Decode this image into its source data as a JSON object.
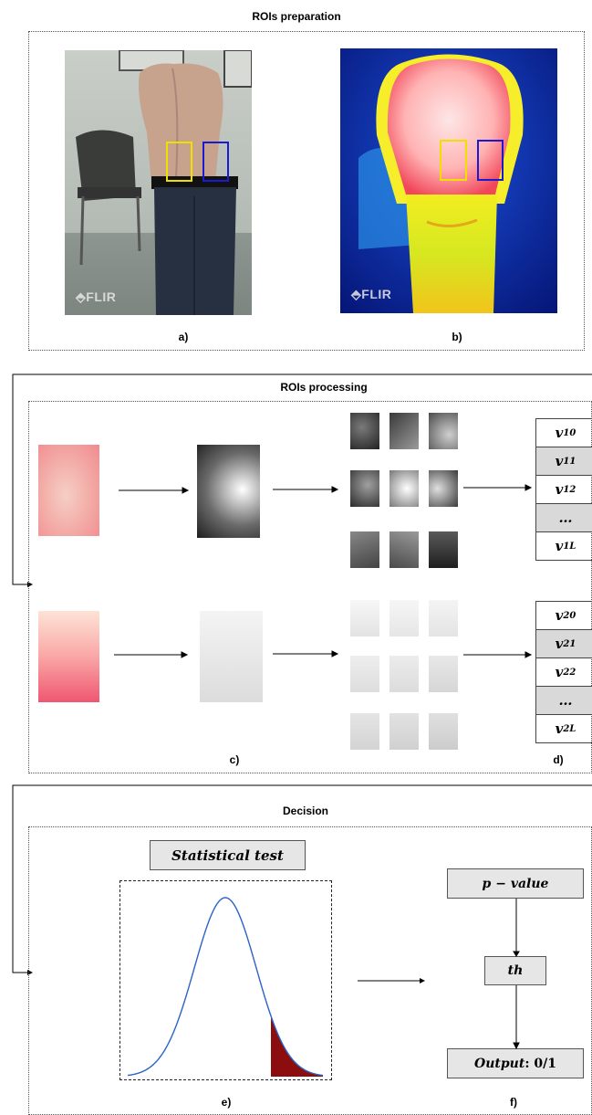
{
  "sections": {
    "preparation": {
      "title": "ROIs preparation",
      "caption_a": "a)",
      "caption_b": "b)"
    },
    "processing": {
      "title": "ROIs processing",
      "caption_c": "c)",
      "caption_d": "d)"
    },
    "decision": {
      "title": "Decision",
      "caption_e": "e)",
      "caption_f": "f)"
    }
  },
  "images": {
    "watermark": "FLIR",
    "roi_colors": {
      "left_roi": "#f0e000",
      "right_roi": "#1a1ad0"
    }
  },
  "vectors": {
    "v1": [
      {
        "base": "v",
        "sub": "10",
        "shaded": false
      },
      {
        "base": "v",
        "sub": "11",
        "shaded": true
      },
      {
        "base": "v",
        "sub": "12",
        "shaded": false
      },
      {
        "base": "…",
        "sub": "",
        "shaded": true
      },
      {
        "base": "v",
        "sub": "1L",
        "shaded": false
      }
    ],
    "v2": [
      {
        "base": "v",
        "sub": "20",
        "shaded": false
      },
      {
        "base": "v",
        "sub": "21",
        "shaded": true
      },
      {
        "base": "v",
        "sub": "22",
        "shaded": false
      },
      {
        "base": "…",
        "sub": "",
        "shaded": true
      },
      {
        "base": "v",
        "sub": "2L",
        "shaded": false
      }
    ]
  },
  "decision": {
    "statistical_test_label": "Statistical test",
    "p_value_label": "p − value",
    "threshold_label": "th",
    "output_label": "Output",
    "output_value": ": 0/1",
    "curve_color": "#2b63c7",
    "tail_color": "#8b0d0d"
  }
}
